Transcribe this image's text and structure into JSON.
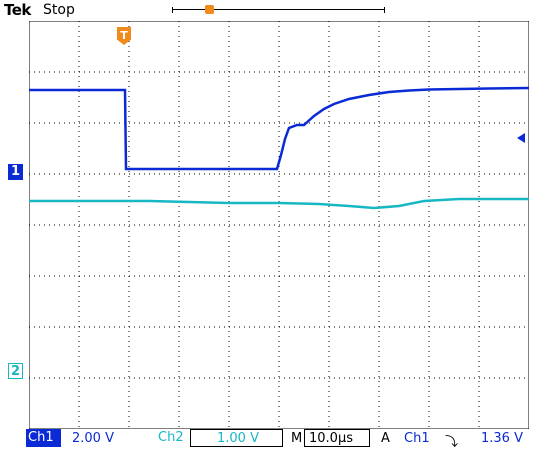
{
  "header": {
    "brand": "Tek",
    "status": "Stop"
  },
  "markers": {
    "trigger_position": "T",
    "ch1": "1",
    "ch2": "2"
  },
  "readout": {
    "ch1_label": "Ch1",
    "ch1_scale": "2.00 V",
    "ch2_label": "Ch2",
    "ch2_scale": "1.00 V",
    "timebase_label": "M",
    "timebase": "10.0µs",
    "trigger_mode": "A",
    "trigger_source": "Ch1",
    "trigger_slope": "⤵",
    "trigger_level": "1.36 V"
  },
  "colors": {
    "ch1": "#0a2ad6",
    "ch2": "#17b8c4",
    "trigger": "#f08a1a"
  },
  "icons": {
    "trigger_slope": "falling-edge-icon",
    "trigger_level": "trigger-level-arrow-icon"
  }
}
